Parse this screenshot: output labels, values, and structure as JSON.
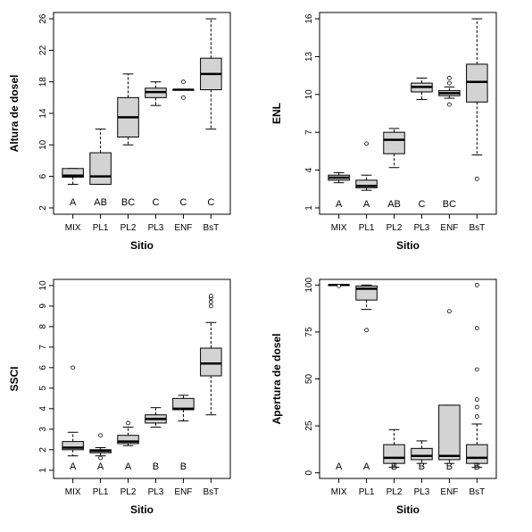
{
  "chart_data": [
    {
      "type": "boxplot",
      "xlabel": "Sitio",
      "ylabel": "Altura de dosel",
      "categories": [
        "MIX",
        "PL1",
        "PL2",
        "PL3",
        "ENF",
        "BsT"
      ],
      "yticks": [
        2,
        6,
        10,
        14,
        18,
        22,
        26
      ],
      "ylim": [
        1.2,
        26.8
      ],
      "group_letters": [
        "A",
        "AB",
        "BC",
        "C",
        "C",
        "C"
      ],
      "boxes": [
        {
          "whisker_low": 5,
          "q1": 5.9,
          "median": 6.1,
          "q3": 7,
          "whisker_high": 7,
          "outliers": []
        },
        {
          "whisker_low": 5,
          "q1": 5,
          "median": 6,
          "q3": 9,
          "whisker_high": 12,
          "outliers": []
        },
        {
          "whisker_low": 10,
          "q1": 11,
          "median": 13.5,
          "q3": 16,
          "whisker_high": 19,
          "outliers": []
        },
        {
          "whisker_low": 15,
          "q1": 16,
          "median": 16.7,
          "q3": 17.2,
          "whisker_high": 18,
          "outliers": []
        },
        {
          "whisker_low": 17,
          "q1": 17,
          "median": 17,
          "q3": 17,
          "whisker_high": 17,
          "outliers": [
            16,
            18
          ]
        },
        {
          "whisker_low": 12,
          "q1": 17,
          "median": 19,
          "q3": 21,
          "whisker_high": 26,
          "outliers": []
        }
      ]
    },
    {
      "type": "boxplot",
      "xlabel": "Sitio",
      "ylabel": "ENL",
      "categories": [
        "MIX",
        "PL1",
        "PL2",
        "PL3",
        "ENF",
        "BsT"
      ],
      "yticks": [
        1,
        4,
        7,
        10,
        13,
        16
      ],
      "ylim": [
        0.5,
        16.5
      ],
      "group_letters": [
        "A",
        "A",
        "AB",
        "C",
        "BC",
        ""
      ],
      "boxes": [
        {
          "whisker_low": 3.0,
          "q1": 3.2,
          "median": 3.4,
          "q3": 3.6,
          "whisker_high": 3.8,
          "outliers": []
        },
        {
          "whisker_low": 2.4,
          "q1": 2.6,
          "median": 2.75,
          "q3": 3.2,
          "whisker_high": 3.6,
          "outliers": [
            6.1
          ]
        },
        {
          "whisker_low": 4.2,
          "q1": 5.3,
          "median": 6.4,
          "q3": 7.0,
          "whisker_high": 7.3,
          "outliers": []
        },
        {
          "whisker_low": 9.6,
          "q1": 10.2,
          "median": 10.6,
          "q3": 10.9,
          "whisker_high": 11.3,
          "outliers": []
        },
        {
          "whisker_low": 9.7,
          "q1": 9.9,
          "median": 10.1,
          "q3": 10.3,
          "whisker_high": 10.6,
          "outliers": [
            11.3,
            10.9,
            9.2
          ]
        },
        {
          "whisker_low": 5.2,
          "q1": 9.4,
          "median": 11.0,
          "q3": 12.4,
          "whisker_high": 16,
          "outliers": [
            3.3
          ]
        }
      ]
    },
    {
      "type": "boxplot",
      "xlabel": "Sitio",
      "ylabel": "SSCI",
      "categories": [
        "MIX",
        "PL1",
        "PL2",
        "PL3",
        "ENF",
        "BsT"
      ],
      "yticks": [
        1,
        2,
        3,
        4,
        5,
        6,
        7,
        8,
        9,
        10
      ],
      "ylim": [
        0.6,
        10.3
      ],
      "group_letters": [
        "A",
        "A",
        "A",
        "B",
        "B",
        ""
      ],
      "boxes": [
        {
          "whisker_low": 1.7,
          "q1": 2.0,
          "median": 2.1,
          "q3": 2.4,
          "whisker_high": 2.85,
          "outliers": [
            6.0
          ]
        },
        {
          "whisker_low": 1.7,
          "q1": 1.85,
          "median": 1.95,
          "q3": 2.0,
          "whisker_high": 2.1,
          "outliers": [
            2.7,
            1.6
          ]
        },
        {
          "whisker_low": 2.2,
          "q1": 2.3,
          "median": 2.4,
          "q3": 2.7,
          "whisker_high": 3.1,
          "outliers": [
            3.3
          ]
        },
        {
          "whisker_low": 3.1,
          "q1": 3.3,
          "median": 3.5,
          "q3": 3.7,
          "whisker_high": 4.05,
          "outliers": []
        },
        {
          "whisker_low": 3.4,
          "q1": 3.95,
          "median": 4.0,
          "q3": 4.5,
          "whisker_high": 4.65,
          "outliers": []
        },
        {
          "whisker_low": 3.7,
          "q1": 5.6,
          "median": 6.2,
          "q3": 6.95,
          "whisker_high": 8.2,
          "outliers": [
            9.0,
            9.2,
            9.4,
            9.5
          ]
        }
      ]
    },
    {
      "type": "boxplot",
      "xlabel": "Sitio",
      "ylabel": "Apertura de dosel",
      "categories": [
        "MIX",
        "PL1",
        "PL2",
        "PL3",
        "ENF",
        "BsT"
      ],
      "yticks": [
        0,
        25,
        50,
        75,
        100
      ],
      "ylim": [
        -3,
        103
      ],
      "group_letters": [
        "A",
        "A",
        "B",
        "B",
        "B",
        "B"
      ],
      "boxes": [
        {
          "whisker_low": 100,
          "q1": 100,
          "median": 100,
          "q3": 100,
          "whisker_high": 100,
          "outliers": [
            99.5
          ]
        },
        {
          "whisker_low": 87,
          "q1": 92,
          "median": 98,
          "q3": 99.5,
          "whisker_high": 100,
          "outliers": [
            76
          ]
        },
        {
          "whisker_low": 3,
          "q1": 5,
          "median": 8,
          "q3": 15,
          "whisker_high": 23,
          "outliers": []
        },
        {
          "whisker_low": 5,
          "q1": 7,
          "median": 9,
          "q3": 13,
          "whisker_high": 17,
          "outliers": []
        },
        {
          "whisker_low": 5,
          "q1": 7,
          "median": 9,
          "q3": 36,
          "whisker_high": 36,
          "outliers": [
            86
          ]
        },
        {
          "whisker_low": 3,
          "q1": 5,
          "median": 8,
          "q3": 15,
          "whisker_high": 26,
          "outliers": [
            100,
            77,
            55,
            39,
            35,
            30
          ]
        }
      ]
    }
  ]
}
